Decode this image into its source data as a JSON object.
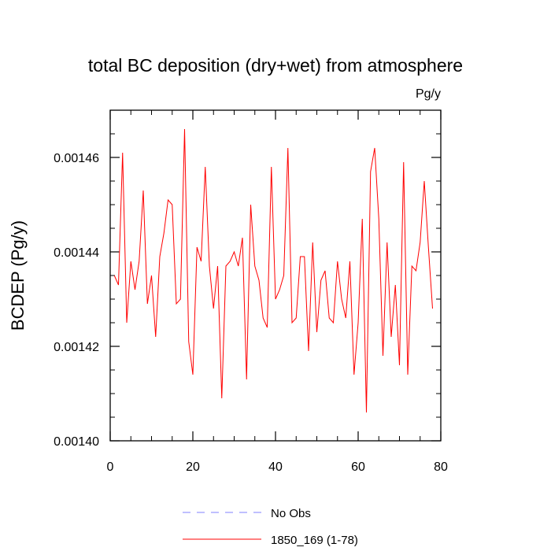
{
  "chart_data": {
    "type": "line",
    "title": "total BC deposition (dry+wet) from atmosphere",
    "units": "Pg/y",
    "ylabel": "BCDEP  (Pg/y)",
    "xlabel": "",
    "xlim": [
      0,
      80
    ],
    "ylim": [
      0.0014,
      0.00147
    ],
    "x_ticks": [
      0,
      20,
      40,
      60,
      80
    ],
    "x_tick_labels": [
      "0",
      "20",
      "40",
      "60",
      "80"
    ],
    "y_ticks": [
      0.0014,
      0.00142,
      0.00144,
      0.00146
    ],
    "y_tick_labels": [
      "0.00140",
      "0.00142",
      "0.00144",
      "0.00146"
    ],
    "grid": false,
    "legend_position": "bottom",
    "series": [
      {
        "name": "1850_169 (1-78)",
        "color": "#ff0000",
        "style": "solid",
        "x": [
          1,
          2,
          3,
          4,
          5,
          6,
          7,
          8,
          9,
          10,
          11,
          12,
          13,
          14,
          15,
          16,
          17,
          18,
          19,
          20,
          21,
          22,
          23,
          24,
          25,
          26,
          27,
          28,
          29,
          30,
          31,
          32,
          33,
          34,
          35,
          36,
          37,
          38,
          39,
          40,
          41,
          42,
          43,
          44,
          45,
          46,
          47,
          48,
          49,
          50,
          51,
          52,
          53,
          54,
          55,
          56,
          57,
          58,
          59,
          60,
          61,
          62,
          63,
          64,
          65,
          66,
          67,
          68,
          69,
          70,
          71,
          72,
          73,
          74,
          75,
          76,
          77,
          78
        ],
        "values": [
          0.001435,
          0.001433,
          0.001461,
          0.001425,
          0.001438,
          0.001432,
          0.001438,
          0.001453,
          0.001429,
          0.001435,
          0.001422,
          0.001439,
          0.001444,
          0.001451,
          0.00145,
          0.001429,
          0.00143,
          0.001466,
          0.001421,
          0.001414,
          0.001441,
          0.001438,
          0.001458,
          0.001437,
          0.001428,
          0.001437,
          0.001409,
          0.001437,
          0.001438,
          0.00144,
          0.001437,
          0.001443,
          0.001413,
          0.00145,
          0.001437,
          0.001434,
          0.001426,
          0.001424,
          0.001458,
          0.00143,
          0.001432,
          0.001435,
          0.001462,
          0.001425,
          0.001426,
          0.001439,
          0.001439,
          0.001419,
          0.001442,
          0.001423,
          0.001434,
          0.001436,
          0.001426,
          0.001425,
          0.001438,
          0.00143,
          0.001426,
          0.001438,
          0.001414,
          0.001425,
          0.001447,
          0.001406,
          0.001457,
          0.001462,
          0.001447,
          0.001418,
          0.001442,
          0.001422,
          0.001433,
          0.001416,
          0.001459,
          0.001414,
          0.001437,
          0.001436,
          0.001442,
          0.001455,
          0.001441,
          0.001428
        ]
      }
    ]
  },
  "legend": {
    "items": [
      {
        "label": "No Obs",
        "color": "#8080ff",
        "style": "dashed"
      },
      {
        "label": "1850_169 (1-78)",
        "color": "#ff0000",
        "style": "solid"
      }
    ]
  }
}
